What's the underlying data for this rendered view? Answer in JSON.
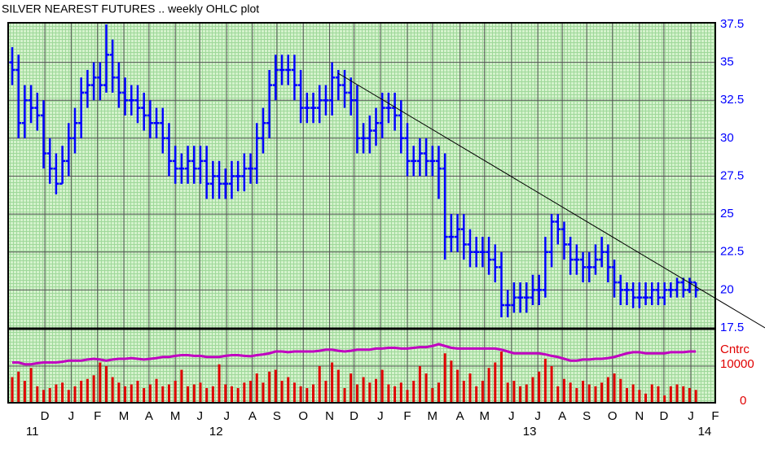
{
  "chart_data": {
    "type": "ohlc",
    "title": "SILVER NEAREST FUTURES .. weekly OHLC plot",
    "volume_axis_label": "Cntrc",
    "categories": [
      null,
      null,
      null,
      null,
      null,
      null,
      null,
      null,
      null,
      null,
      null,
      null,
      null,
      null,
      null,
      null,
      null,
      null,
      null,
      null,
      null,
      null,
      null,
      null,
      null,
      null,
      null,
      null,
      null,
      null,
      null,
      null,
      null,
      null,
      null,
      null,
      null,
      null,
      null,
      null,
      null,
      null,
      null,
      null,
      null,
      null,
      null,
      null,
      null,
      null,
      null,
      null,
      null,
      null,
      null,
      null,
      null,
      null,
      null,
      null,
      null,
      null,
      null,
      null,
      null,
      null,
      null,
      null,
      null,
      null,
      null,
      null,
      null,
      null,
      null,
      null,
      null,
      null,
      null,
      null,
      null,
      null,
      null,
      null,
      null,
      null,
      null,
      null,
      null,
      null,
      null,
      null,
      null,
      null,
      null,
      null,
      null,
      null,
      null,
      null,
      null,
      null,
      null,
      null,
      null,
      null,
      null,
      null,
      null,
      null
    ],
    "open": [
      35,
      34.5,
      31,
      32.5,
      32,
      31.5,
      29,
      28,
      27,
      28.5,
      30,
      31,
      33,
      33.5,
      34,
      33.5,
      35.5,
      34,
      33,
      32.5,
      32.5,
      32,
      31.5,
      31,
      31,
      30,
      28.5,
      28,
      28,
      28.5,
      28,
      28.5,
      27,
      27.5,
      27,
      27,
      27.5,
      27.5,
      28,
      28,
      30,
      31,
      33.5,
      34.5,
      34.5,
      34.5,
      33.5,
      32,
      32,
      32,
      32.5,
      32.5,
      34,
      33.5,
      33,
      32.5,
      30,
      30,
      30.5,
      31,
      32,
      32,
      31.5,
      30,
      28.5,
      28.5,
      29,
      28.5,
      28.5,
      28,
      23.5,
      23.5,
      24,
      23,
      22.5,
      22.5,
      22.5,
      22,
      21.5,
      19,
      19,
      19.5,
      19.5,
      19.5,
      20,
      20,
      22.5,
      24.5,
      24,
      23,
      22,
      22,
      21.5,
      21.5,
      22,
      22.5,
      21.5,
      20.5,
      20,
      20,
      19.5,
      19.5,
      19.5,
      20,
      19.5,
      20,
      20,
      20.5,
      20,
      20.5
    ],
    "high": [
      36,
      35.5,
      33.5,
      33.5,
      33,
      32.5,
      30,
      29,
      29.5,
      31,
      32,
      34,
      34.5,
      35,
      35,
      37.5,
      36.5,
      35,
      34,
      33.5,
      33.5,
      33,
      32.5,
      32,
      32,
      31,
      29.5,
      29,
      29.5,
      29.5,
      29.5,
      29.5,
      28.5,
      28.5,
      28,
      28.5,
      28.5,
      29,
      29,
      31,
      32,
      34.5,
      35.5,
      35.5,
      35.5,
      35.5,
      34.5,
      33,
      33,
      33.5,
      33.5,
      35,
      34.5,
      34.5,
      34,
      33.5,
      31,
      31.5,
      32,
      33,
      33,
      33,
      32.5,
      31,
      29.5,
      30,
      30,
      29.5,
      29.5,
      29,
      25,
      25,
      25,
      24,
      23.5,
      23.5,
      23.5,
      23,
      22.5,
      20,
      20.5,
      20.5,
      20.5,
      21,
      21,
      23.5,
      25,
      25,
      24.5,
      23.5,
      23,
      22.5,
      22.5,
      23,
      23.5,
      23,
      22,
      21,
      20.5,
      20.5,
      20.5,
      20.5,
      20.5,
      20.5,
      20.5,
      20.5,
      20.8,
      20.8,
      20.8,
      20.5
    ],
    "low": [
      33.5,
      30,
      30,
      31,
      30.5,
      28,
      27,
      26.3,
      27,
      27.5,
      29,
      30,
      32,
      32.5,
      32.5,
      33,
      33,
      32,
      31.5,
      31.5,
      31,
      30.5,
      30,
      30,
      29,
      27.5,
      27,
      27,
      27,
      27,
      27,
      26,
      26,
      26,
      26,
      26,
      26.5,
      26.5,
      27,
      27,
      29,
      30,
      32.5,
      33.5,
      33.5,
      32.5,
      31,
      31,
      31,
      31,
      31.5,
      31.5,
      32.5,
      32,
      31.5,
      29,
      29,
      29,
      29.5,
      30,
      31,
      30.5,
      29,
      27.5,
      27.5,
      27.5,
      27.5,
      27.5,
      26,
      22,
      22.5,
      22.5,
      22,
      21.5,
      21.5,
      21.5,
      21,
      20.5,
      18.2,
      18.2,
      18.5,
      18.5,
      18.5,
      19,
      19,
      19.5,
      21.5,
      23,
      22,
      21,
      21,
      20.5,
      20.5,
      21,
      21.5,
      20.5,
      19.5,
      19,
      19,
      18.8,
      18.8,
      19,
      19,
      19,
      19,
      19.5,
      19.5,
      19.5,
      19.8,
      19.5
    ],
    "close": [
      34.5,
      31,
      32.5,
      32,
      31.5,
      29,
      28,
      27,
      28.5,
      30,
      31,
      33,
      33.5,
      34,
      33.5,
      35.5,
      34,
      33,
      32.5,
      32.5,
      32,
      31.5,
      31,
      31,
      30,
      28.5,
      28,
      28,
      28.5,
      28,
      28.5,
      27,
      27.5,
      27,
      27,
      27.5,
      27.5,
      28,
      28,
      30,
      31,
      33.5,
      34.5,
      34.5,
      34.5,
      33.5,
      32,
      32,
      32,
      32.5,
      32.5,
      34,
      33.5,
      33,
      32.5,
      30,
      30,
      30.5,
      31,
      32,
      32,
      31.5,
      30,
      28.5,
      28.5,
      29,
      28.5,
      28.5,
      28,
      23.5,
      23.5,
      24,
      23,
      22.5,
      22.5,
      22.5,
      22,
      21.5,
      19,
      19,
      19.5,
      19.5,
      19.5,
      20,
      20,
      22.5,
      24.5,
      24,
      23,
      22,
      22,
      21.5,
      21.5,
      22,
      22.5,
      21.5,
      20.5,
      20,
      20,
      19.5,
      19.5,
      19.5,
      20,
      19.5,
      20,
      20,
      20.5,
      20,
      20.5,
      20
    ],
    "color": "#0000ff",
    "volume": {
      "color": "#e00000",
      "values": [
        7000,
        8500,
        6000,
        9500,
        4500,
        3500,
        4000,
        5000,
        5500,
        3500,
        4500,
        6000,
        6500,
        7500,
        11000,
        10000,
        7000,
        5500,
        4500,
        5000,
        6000,
        4000,
        5000,
        6500,
        4500,
        5000,
        6000,
        9000,
        4500,
        5000,
        5500,
        4000,
        4500,
        10500,
        5000,
        4500,
        4000,
        5500,
        6000,
        8000,
        5500,
        8500,
        9000,
        6000,
        7000,
        5500,
        4500,
        4000,
        5000,
        10000,
        6000,
        11000,
        9000,
        4000,
        8000,
        5000,
        7000,
        5500,
        6500,
        9000,
        5000,
        4500,
        5500,
        3500,
        6000,
        10000,
        8000,
        4000,
        5500,
        13500,
        11500,
        9000,
        6000,
        8000,
        4500,
        6000,
        9500,
        11000,
        14000,
        5500,
        6000,
        4500,
        5000,
        7000,
        8500,
        12000,
        10000,
        4500,
        6500,
        5500,
        4000,
        6000,
        5000,
        4500,
        5500,
        7000,
        8000,
        6500,
        4000,
        5000,
        3500,
        2500,
        5000,
        4500,
        2000,
        4500,
        5000,
        4500,
        4000,
        3500
      ]
    },
    "open_interest": {
      "color": "#c000c0",
      "values": [
        11000,
        11000,
        10500,
        10500,
        10800,
        11000,
        11000,
        11000,
        11200,
        11500,
        11500,
        11500,
        11800,
        12000,
        11800,
        11500,
        11800,
        12000,
        12000,
        12200,
        12000,
        11800,
        12000,
        12200,
        12500,
        12500,
        12800,
        13000,
        13000,
        12800,
        12800,
        12500,
        12500,
        12500,
        12800,
        13000,
        13000,
        12800,
        12700,
        13000,
        13200,
        13500,
        14000,
        14000,
        13800,
        14000,
        14000,
        14000,
        14000,
        14200,
        14500,
        14500,
        14200,
        14000,
        14200,
        14500,
        14500,
        14500,
        14800,
        14800,
        15000,
        15000,
        14800,
        14800,
        15000,
        15200,
        15200,
        15500,
        16000,
        15500,
        15000,
        14800,
        14800,
        14800,
        14800,
        14800,
        14800,
        14800,
        14500,
        14000,
        13500,
        13500,
        13500,
        13500,
        13500,
        13200,
        12800,
        12500,
        12000,
        11500,
        11500,
        11800,
        11800,
        12000,
        12000,
        12200,
        12500,
        13000,
        13500,
        13800,
        13800,
        13500,
        13500,
        13500,
        13500,
        13800,
        13800,
        13800,
        14000,
        14000
      ]
    },
    "xlim": [
      -0.65,
      112.1
    ],
    "xticks": [
      {
        "value": 5.2,
        "label": "D"
      },
      {
        "value": 9.4,
        "label": "J"
      },
      {
        "value": 13.6,
        "label": "F"
      },
      {
        "value": 17.8,
        "label": "M"
      },
      {
        "value": 21.8,
        "label": "A"
      },
      {
        "value": 26,
        "label": "M"
      },
      {
        "value": 29.9,
        "label": "J"
      },
      {
        "value": 34.2,
        "label": "J"
      },
      {
        "value": 38.3,
        "label": "A"
      },
      {
        "value": 42.2,
        "label": "S"
      },
      {
        "value": 46.4,
        "label": "O"
      },
      {
        "value": 50.6,
        "label": "N"
      },
      {
        "value": 54.5,
        "label": "D"
      },
      {
        "value": 58.7,
        "label": "J"
      },
      {
        "value": 63,
        "label": "F"
      },
      {
        "value": 67,
        "label": "M"
      },
      {
        "value": 71.4,
        "label": "A"
      },
      {
        "value": 75.3,
        "label": "M"
      },
      {
        "value": 79.6,
        "label": "J"
      },
      {
        "value": 83.8,
        "label": "J"
      },
      {
        "value": 87.7,
        "label": "A"
      },
      {
        "value": 91.6,
        "label": "S"
      },
      {
        "value": 95.7,
        "label": "O"
      },
      {
        "value": 100,
        "label": "N"
      },
      {
        "value": 103.9,
        "label": "D"
      },
      {
        "value": 108.2,
        "label": "J"
      },
      {
        "value": 112.1,
        "label": "F"
      }
    ],
    "year_ticks": [
      {
        "value": 3.2,
        "label": "11"
      },
      {
        "value": 32.5,
        "label": "12"
      },
      {
        "value": 82.5,
        "label": "13"
      },
      {
        "value": 110.4,
        "label": "14"
      }
    ],
    "ylim": [
      17.5,
      37.5
    ],
    "yticks": [
      17.5,
      20,
      22.5,
      25,
      27.5,
      30,
      32.5,
      35,
      37.5
    ],
    "y2lim": [
      0,
      20000
    ],
    "y2ticks": [
      0,
      10000
    ],
    "grid": true
  }
}
